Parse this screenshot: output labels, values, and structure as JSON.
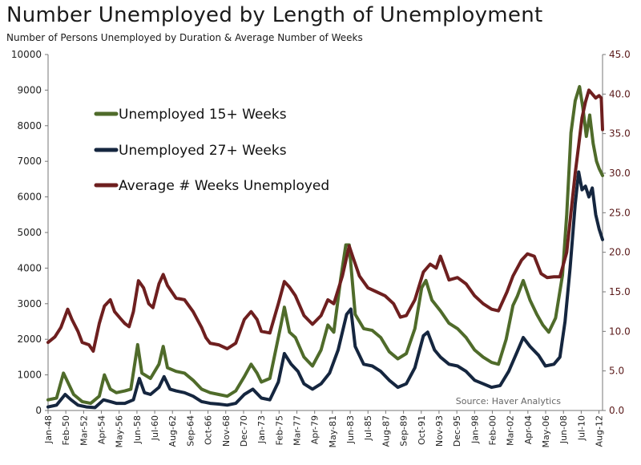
{
  "header": {
    "title": "Number Unemployed by Length of Unemployment",
    "subtitle": "Number of Persons Unemployed by Duration & Average Number of Weeks"
  },
  "chart_data": {
    "type": "line",
    "title": "Number Unemployed by Length of Unemployment",
    "subtitle": "Number of Persons Unemployed by Duration & Average Number of Weeks",
    "source": "Source: Haver Analytics",
    "ylim_left": [
      0,
      10000
    ],
    "ylim_right": [
      0,
      45
    ],
    "yticks_left": [
      "0",
      "1000",
      "2000",
      "3000",
      "4000",
      "5000",
      "6000",
      "7000",
      "8000",
      "9000",
      "10000"
    ],
    "yticks_right": [
      "0.0",
      "5.0",
      "10.0",
      "15.0",
      "20.0",
      "25.0",
      "30.0",
      "35.0",
      "40.0",
      "45.0"
    ],
    "xlim": [
      1948.0,
      2013.0
    ],
    "x_ticks": [
      {
        "label": "Jan-48",
        "t": 1948.0
      },
      {
        "label": "Feb-50",
        "t": 1950.08
      },
      {
        "label": "Mar-52",
        "t": 1952.17
      },
      {
        "label": "Apr-54",
        "t": 1954.25
      },
      {
        "label": "May-56",
        "t": 1956.33
      },
      {
        "label": "Jun-58",
        "t": 1958.42
      },
      {
        "label": "Jul-60",
        "t": 1960.5
      },
      {
        "label": "Aug-62",
        "t": 1962.58
      },
      {
        "label": "Sep-64",
        "t": 1964.67
      },
      {
        "label": "Oct-66",
        "t": 1966.75
      },
      {
        "label": "Nov-68",
        "t": 1968.83
      },
      {
        "label": "Dec-70",
        "t": 1970.92
      },
      {
        "label": "Jan-73",
        "t": 1973.0
      },
      {
        "label": "Feb-75",
        "t": 1975.08
      },
      {
        "label": "Mar-77",
        "t": 1977.17
      },
      {
        "label": "Apr-79",
        "t": 1979.25
      },
      {
        "label": "May-81",
        "t": 1981.33
      },
      {
        "label": "Jun-83",
        "t": 1983.42
      },
      {
        "label": "Jul-85",
        "t": 1985.5
      },
      {
        "label": "Aug-87",
        "t": 1987.58
      },
      {
        "label": "Sep-89",
        "t": 1989.67
      },
      {
        "label": "Oct-91",
        "t": 1991.75
      },
      {
        "label": "Nov-93",
        "t": 1993.83
      },
      {
        "label": "Dec-95",
        "t": 1995.92
      },
      {
        "label": "Jan-98",
        "t": 1998.0
      },
      {
        "label": "Feb-00",
        "t": 2000.08
      },
      {
        "label": "Mar-02",
        "t": 2002.17
      },
      {
        "label": "Apr-04",
        "t": 2004.25
      },
      {
        "label": "May-06",
        "t": 2006.33
      },
      {
        "label": "Jun-08",
        "t": 2008.42
      },
      {
        "label": "Jul-10",
        "t": 2010.5
      },
      {
        "label": "Aug-12",
        "t": 2012.58
      }
    ],
    "grid": false,
    "legend_position": "upper-left",
    "series": [
      {
        "name": "Unemployed 15+ Weeks",
        "axis": "left",
        "color": "#4f6b2a",
        "points": [
          [
            1948.0,
            300
          ],
          [
            1949.0,
            350
          ],
          [
            1949.8,
            1050
          ],
          [
            1950.5,
            700
          ],
          [
            1951.0,
            450
          ],
          [
            1952.0,
            250
          ],
          [
            1953.0,
            200
          ],
          [
            1954.0,
            400
          ],
          [
            1954.6,
            1000
          ],
          [
            1955.3,
            600
          ],
          [
            1956.0,
            500
          ],
          [
            1957.0,
            550
          ],
          [
            1957.7,
            600
          ],
          [
            1958.5,
            1850
          ],
          [
            1959.0,
            1050
          ],
          [
            1960.0,
            900
          ],
          [
            1961.0,
            1300
          ],
          [
            1961.5,
            1800
          ],
          [
            1962.0,
            1200
          ],
          [
            1963.0,
            1100
          ],
          [
            1964.0,
            1050
          ],
          [
            1965.0,
            850
          ],
          [
            1966.0,
            600
          ],
          [
            1967.0,
            500
          ],
          [
            1968.0,
            450
          ],
          [
            1969.0,
            400
          ],
          [
            1970.0,
            550
          ],
          [
            1971.0,
            950
          ],
          [
            1971.8,
            1300
          ],
          [
            1972.5,
            1050
          ],
          [
            1973.0,
            800
          ],
          [
            1974.0,
            900
          ],
          [
            1975.3,
            2400
          ],
          [
            1975.7,
            2900
          ],
          [
            1976.3,
            2200
          ],
          [
            1977.0,
            2050
          ],
          [
            1978.0,
            1500
          ],
          [
            1979.0,
            1250
          ],
          [
            1980.0,
            1700
          ],
          [
            1980.8,
            2400
          ],
          [
            1981.5,
            2200
          ],
          [
            1982.3,
            3700
          ],
          [
            1982.9,
            4650
          ],
          [
            1983.3,
            4650
          ],
          [
            1984.0,
            2700
          ],
          [
            1985.0,
            2300
          ],
          [
            1986.0,
            2250
          ],
          [
            1987.0,
            2050
          ],
          [
            1988.0,
            1650
          ],
          [
            1989.0,
            1450
          ],
          [
            1990.0,
            1600
          ],
          [
            1991.0,
            2300
          ],
          [
            1991.8,
            3450
          ],
          [
            1992.3,
            3650
          ],
          [
            1993.0,
            3100
          ],
          [
            1994.0,
            2800
          ],
          [
            1995.0,
            2450
          ],
          [
            1996.0,
            2300
          ],
          [
            1997.0,
            2050
          ],
          [
            1998.0,
            1700
          ],
          [
            1999.0,
            1500
          ],
          [
            2000.0,
            1350
          ],
          [
            2000.8,
            1300
          ],
          [
            2001.7,
            2000
          ],
          [
            2002.5,
            2950
          ],
          [
            2003.0,
            3200
          ],
          [
            2003.7,
            3650
          ],
          [
            2004.5,
            3100
          ],
          [
            2005.3,
            2700
          ],
          [
            2006.0,
            2400
          ],
          [
            2006.7,
            2200
          ],
          [
            2007.5,
            2600
          ],
          [
            2008.3,
            3800
          ],
          [
            2008.8,
            5500
          ],
          [
            2009.3,
            7800
          ],
          [
            2009.8,
            8700
          ],
          [
            2010.3,
            9100
          ],
          [
            2010.7,
            8500
          ],
          [
            2011.1,
            7700
          ],
          [
            2011.5,
            8300
          ],
          [
            2011.9,
            7500
          ],
          [
            2012.3,
            7000
          ],
          [
            2012.6,
            6800
          ],
          [
            2013.0,
            6600
          ]
        ]
      },
      {
        "name": "Unemployed 27+ Weeks",
        "axis": "left",
        "color": "#15263f",
        "points": [
          [
            1948.0,
            100
          ],
          [
            1949.0,
            150
          ],
          [
            1950.0,
            450
          ],
          [
            1950.7,
            300
          ],
          [
            1951.5,
            150
          ],
          [
            1952.5,
            100
          ],
          [
            1953.5,
            80
          ],
          [
            1954.5,
            300
          ],
          [
            1955.3,
            250
          ],
          [
            1956.0,
            200
          ],
          [
            1957.0,
            200
          ],
          [
            1958.0,
            300
          ],
          [
            1958.7,
            900
          ],
          [
            1959.3,
            500
          ],
          [
            1960.0,
            450
          ],
          [
            1961.0,
            650
          ],
          [
            1961.6,
            950
          ],
          [
            1962.3,
            600
          ],
          [
            1963.0,
            550
          ],
          [
            1964.0,
            500
          ],
          [
            1965.0,
            400
          ],
          [
            1966.0,
            250
          ],
          [
            1967.0,
            200
          ],
          [
            1968.0,
            180
          ],
          [
            1969.0,
            150
          ],
          [
            1970.0,
            200
          ],
          [
            1971.0,
            450
          ],
          [
            1972.0,
            600
          ],
          [
            1973.0,
            350
          ],
          [
            1974.0,
            300
          ],
          [
            1975.0,
            800
          ],
          [
            1975.7,
            1600
          ],
          [
            1976.5,
            1300
          ],
          [
            1977.3,
            1100
          ],
          [
            1978.0,
            750
          ],
          [
            1979.0,
            600
          ],
          [
            1980.0,
            750
          ],
          [
            1981.0,
            1050
          ],
          [
            1982.0,
            1700
          ],
          [
            1983.0,
            2700
          ],
          [
            1983.5,
            2850
          ],
          [
            1984.0,
            1800
          ],
          [
            1985.0,
            1300
          ],
          [
            1986.0,
            1250
          ],
          [
            1987.0,
            1100
          ],
          [
            1988.0,
            850
          ],
          [
            1989.0,
            650
          ],
          [
            1990.0,
            750
          ],
          [
            1991.0,
            1200
          ],
          [
            1992.0,
            2100
          ],
          [
            1992.5,
            2200
          ],
          [
            1993.3,
            1700
          ],
          [
            1994.0,
            1500
          ],
          [
            1995.0,
            1300
          ],
          [
            1996.0,
            1250
          ],
          [
            1997.0,
            1100
          ],
          [
            1998.0,
            850
          ],
          [
            1999.0,
            750
          ],
          [
            2000.0,
            650
          ],
          [
            2001.0,
            700
          ],
          [
            2002.0,
            1100
          ],
          [
            2003.0,
            1650
          ],
          [
            2003.7,
            2050
          ],
          [
            2004.5,
            1800
          ],
          [
            2005.5,
            1550
          ],
          [
            2006.3,
            1250
          ],
          [
            2007.3,
            1300
          ],
          [
            2008.0,
            1500
          ],
          [
            2008.6,
            2500
          ],
          [
            2009.2,
            4000
          ],
          [
            2009.8,
            5800
          ],
          [
            2010.2,
            6700
          ],
          [
            2010.6,
            6200
          ],
          [
            2011.0,
            6300
          ],
          [
            2011.4,
            6000
          ],
          [
            2011.8,
            6250
          ],
          [
            2012.2,
            5500
          ],
          [
            2012.6,
            5100
          ],
          [
            2013.0,
            4800
          ]
        ]
      },
      {
        "name": "Average # Weeks Unemployed",
        "axis": "right",
        "color": "#6e1f1f",
        "points": [
          [
            1948.0,
            8.6
          ],
          [
            1948.8,
            9.3
          ],
          [
            1949.5,
            10.5
          ],
          [
            1950.3,
            12.8
          ],
          [
            1950.8,
            11.5
          ],
          [
            1951.5,
            10.0
          ],
          [
            1952.0,
            8.6
          ],
          [
            1952.8,
            8.3
          ],
          [
            1953.3,
            7.5
          ],
          [
            1954.0,
            11.0
          ],
          [
            1954.6,
            13.2
          ],
          [
            1955.3,
            14.0
          ],
          [
            1955.8,
            12.5
          ],
          [
            1956.5,
            11.6
          ],
          [
            1957.0,
            11.0
          ],
          [
            1957.5,
            10.6
          ],
          [
            1958.0,
            12.5
          ],
          [
            1958.6,
            16.4
          ],
          [
            1959.2,
            15.5
          ],
          [
            1959.8,
            13.5
          ],
          [
            1960.3,
            13.0
          ],
          [
            1961.0,
            16.0
          ],
          [
            1961.5,
            17.2
          ],
          [
            1962.0,
            15.8
          ],
          [
            1963.0,
            14.2
          ],
          [
            1964.0,
            14.0
          ],
          [
            1965.0,
            12.5
          ],
          [
            1966.0,
            10.5
          ],
          [
            1966.5,
            9.2
          ],
          [
            1967.0,
            8.5
          ],
          [
            1968.0,
            8.3
          ],
          [
            1969.0,
            7.8
          ],
          [
            1970.0,
            8.5
          ],
          [
            1971.0,
            11.5
          ],
          [
            1971.8,
            12.5
          ],
          [
            1972.5,
            11.5
          ],
          [
            1973.0,
            10.0
          ],
          [
            1974.0,
            9.8
          ],
          [
            1975.0,
            13.5
          ],
          [
            1975.7,
            16.3
          ],
          [
            1976.3,
            15.6
          ],
          [
            1977.0,
            14.5
          ],
          [
            1978.0,
            12.0
          ],
          [
            1979.0,
            10.9
          ],
          [
            1980.0,
            12.0
          ],
          [
            1980.8,
            14.0
          ],
          [
            1981.5,
            13.5
          ],
          [
            1982.5,
            17.0
          ],
          [
            1983.3,
            20.8
          ],
          [
            1983.8,
            19.2
          ],
          [
            1984.5,
            17.0
          ],
          [
            1985.5,
            15.5
          ],
          [
            1986.5,
            15.0
          ],
          [
            1987.5,
            14.5
          ],
          [
            1988.5,
            13.5
          ],
          [
            1989.3,
            11.8
          ],
          [
            1990.0,
            12.0
          ],
          [
            1991.0,
            14.0
          ],
          [
            1992.0,
            17.5
          ],
          [
            1992.8,
            18.5
          ],
          [
            1993.5,
            18.0
          ],
          [
            1994.0,
            19.5
          ],
          [
            1995.0,
            16.5
          ],
          [
            1996.0,
            16.8
          ],
          [
            1997.0,
            16.0
          ],
          [
            1998.0,
            14.5
          ],
          [
            1999.0,
            13.5
          ],
          [
            2000.0,
            12.8
          ],
          [
            2000.8,
            12.6
          ],
          [
            2001.8,
            15.0
          ],
          [
            2002.5,
            17.0
          ],
          [
            2003.5,
            19.0
          ],
          [
            2004.2,
            19.8
          ],
          [
            2005.0,
            19.5
          ],
          [
            2005.8,
            17.3
          ],
          [
            2006.5,
            16.8
          ],
          [
            2007.3,
            16.9
          ],
          [
            2008.0,
            16.9
          ],
          [
            2008.8,
            20.0
          ],
          [
            2009.3,
            25.0
          ],
          [
            2009.8,
            30.0
          ],
          [
            2010.2,
            33.5
          ],
          [
            2010.6,
            37.0
          ],
          [
            2011.0,
            39.0
          ],
          [
            2011.4,
            40.5
          ],
          [
            2011.8,
            40.0
          ],
          [
            2012.2,
            39.5
          ],
          [
            2012.6,
            39.8
          ],
          [
            2012.85,
            39.5
          ],
          [
            2013.0,
            35.5
          ]
        ]
      }
    ]
  }
}
